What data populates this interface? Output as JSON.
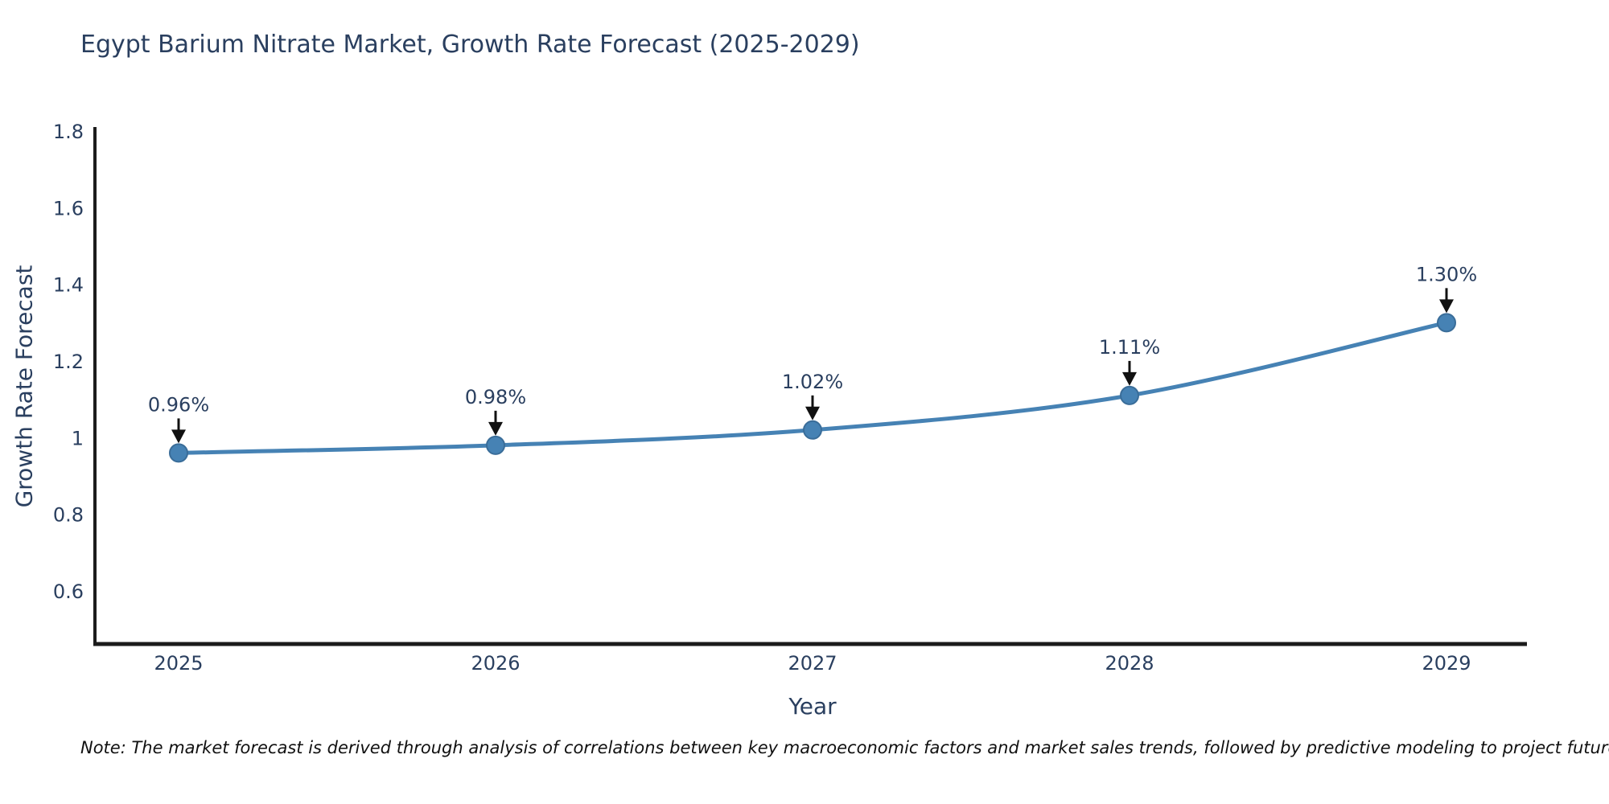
{
  "title": "Egypt Barium Nitrate Market, Growth Rate Forecast (2025-2029)",
  "note": "Note: The market forecast is derived through analysis of correlations between key macroeconomic factors and market sales trends, followed by predictive modeling to project future sales",
  "chart_data": {
    "type": "line",
    "title": "Egypt Barium Nitrate Market, Growth Rate Forecast (2025-2029)",
    "xlabel": "Year",
    "ylabel": "Growth Rate Forecast",
    "x": [
      2025,
      2026,
      2027,
      2028,
      2029
    ],
    "xticklabels": [
      "2025",
      "2026",
      "2027",
      "2028",
      "2029"
    ],
    "series": [
      {
        "name": "Growth Rate Forecast",
        "values": [
          0.96,
          0.98,
          1.02,
          1.11,
          1.3
        ]
      }
    ],
    "point_labels": [
      "0.96%",
      "0.98%",
      "1.02%",
      "1.11%",
      "1.30%"
    ],
    "yticks": [
      0.6,
      0.8,
      1,
      1.2,
      1.4,
      1.6,
      1.8
    ],
    "ylim": [
      0.46,
      1.82
    ],
    "grid": false,
    "legend_position": "none",
    "line_shape": "spline",
    "colors": {
      "line": "#4682b4",
      "marker": "#4682b4",
      "marker_edge": "#3a6d99",
      "axis": "#1c1c1c",
      "text": "#2a3f5f",
      "arrow": "#111111",
      "background": "#ffffff"
    }
  }
}
